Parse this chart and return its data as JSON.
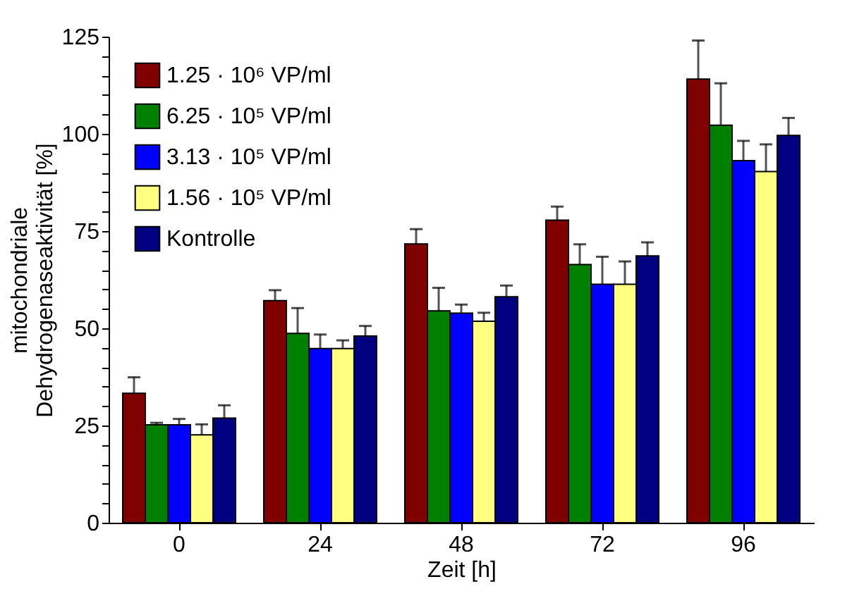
{
  "chart_data": {
    "type": "bar",
    "xlabel": "Zeit [h]",
    "ylabel": "mitochondriale\nDehydrogenaseaktivität [%]",
    "categories": [
      "0",
      "24",
      "48",
      "72",
      "96"
    ],
    "series": [
      {
        "name": "1.25 · 10⁶ VP/ml",
        "color": "#800000",
        "values": [
          33.3,
          57.1,
          71.7,
          77.8,
          114.1
        ],
        "errors": [
          [
            33.3,
            37.4
          ],
          [
            57.1,
            59.8
          ],
          [
            71.7,
            75.5
          ],
          [
            77.8,
            81.3
          ],
          [
            114.1,
            124.0
          ]
        ]
      },
      {
        "name": "6.25 · 10⁵ VP/ml",
        "color": "#008000",
        "values": [
          25.2,
          48.7,
          54.5,
          66.4,
          102.2
        ],
        "errors": [
          [
            25.2,
            25.7
          ],
          [
            48.7,
            55.2
          ],
          [
            54.5,
            60.4
          ],
          [
            66.4,
            71.6
          ],
          [
            102.2,
            113.0
          ]
        ]
      },
      {
        "name": "3.13 · 10⁵ VP/ml",
        "color": "#0000ff",
        "values": [
          25.2,
          44.8,
          53.9,
          61.3,
          93.1
        ],
        "errors": [
          [
            25.2,
            26.7
          ],
          [
            44.8,
            48.4
          ],
          [
            53.9,
            56.1
          ],
          [
            61.3,
            68.4
          ],
          [
            93.1,
            98.2
          ]
        ]
      },
      {
        "name": "1.56 · 10⁵ VP/ml",
        "color": "#ffff80",
        "values": [
          22.6,
          44.8,
          51.8,
          61.3,
          90.3
        ],
        "errors": [
          [
            22.6,
            25.3
          ],
          [
            44.8,
            46.9
          ],
          [
            51.8,
            54.0
          ],
          [
            61.3,
            67.2
          ],
          [
            90.3,
            97.3
          ]
        ]
      },
      {
        "name": "Kontrolle",
        "color": "#000080",
        "values": [
          26.9,
          48.0,
          58.1,
          68.6,
          99.6
        ],
        "errors": [
          [
            26.9,
            30.2
          ],
          [
            48.0,
            50.6
          ],
          [
            58.1,
            61.0
          ],
          [
            68.6,
            72.1
          ],
          [
            99.6,
            104.1
          ]
        ]
      }
    ],
    "ylim": [
      0,
      125
    ],
    "yticks": [
      0,
      {
        "value": 5,
        "label": null
      },
      {
        "value": 10,
        "label": null
      },
      {
        "value": 15,
        "label": null
      },
      {
        "value": 20,
        "label": null
      },
      25,
      {
        "value": 30,
        "label": null
      },
      {
        "value": 35,
        "label": null
      },
      {
        "value": 40,
        "label": null
      },
      {
        "value": 45,
        "label": null
      },
      50,
      {
        "value": 55,
        "label": null
      },
      {
        "value": 60,
        "label": null
      },
      {
        "value": 65,
        "label": null
      },
      {
        "value": 70,
        "label": null
      },
      75,
      {
        "value": 80,
        "label": null
      },
      {
        "value": 85,
        "label": null
      },
      {
        "value": 90,
        "label": null
      },
      {
        "value": 95,
        "label": null
      },
      100,
      {
        "value": 105,
        "label": null
      },
      {
        "value": 110,
        "label": null
      },
      {
        "value": 115,
        "label": null
      },
      {
        "value": 120,
        "label": null
      },
      125
    ],
    "grid": false,
    "legend": "top left"
  }
}
